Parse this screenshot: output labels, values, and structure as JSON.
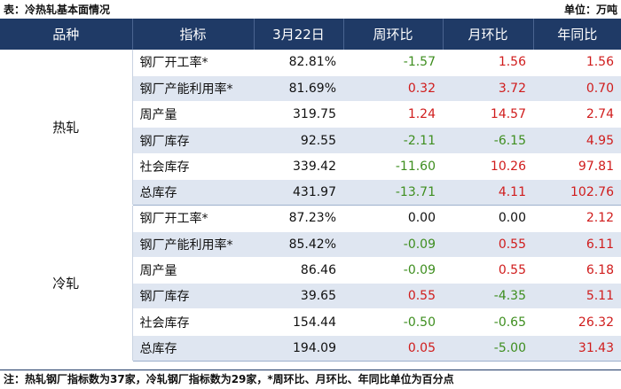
{
  "caption": {
    "title": "表：冷热轧基本面情况",
    "unit": "单位：万吨"
  },
  "headers": [
    "品种",
    "指标",
    "3月22日",
    "周环比",
    "月环比",
    "年同比"
  ],
  "groups": [
    {
      "name": "热轧",
      "rows": [
        {
          "indicator": "钢厂开工率*",
          "value": "82.81%",
          "wow": "-1.57",
          "mom": "1.56",
          "yoy": "1.56"
        },
        {
          "indicator": "钢厂产能利用率*",
          "value": "81.69%",
          "wow": "0.32",
          "mom": "3.72",
          "yoy": "0.70"
        },
        {
          "indicator": "周产量",
          "value": "319.75",
          "wow": "1.24",
          "mom": "14.57",
          "yoy": "2.74"
        },
        {
          "indicator": "钢厂库存",
          "value": "92.55",
          "wow": "-2.11",
          "mom": "-6.15",
          "yoy": "4.95"
        },
        {
          "indicator": "社会库存",
          "value": "339.42",
          "wow": "-11.60",
          "mom": "10.26",
          "yoy": "97.81"
        },
        {
          "indicator": "总库存",
          "value": "431.97",
          "wow": "-13.71",
          "mom": "4.11",
          "yoy": "102.76"
        }
      ]
    },
    {
      "name": "冷轧",
      "rows": [
        {
          "indicator": "钢厂开工率*",
          "value": "87.23%",
          "wow": "0.00",
          "mom": "0.00",
          "yoy": "2.12"
        },
        {
          "indicator": "钢厂产能利用率*",
          "value": "85.42%",
          "wow": "-0.09",
          "mom": "0.55",
          "yoy": "6.11"
        },
        {
          "indicator": "周产量",
          "value": "86.46",
          "wow": "-0.09",
          "mom": "0.55",
          "yoy": "6.18"
        },
        {
          "indicator": "钢厂库存",
          "value": "39.65",
          "wow": "0.55",
          "mom": "-4.35",
          "yoy": "5.11"
        },
        {
          "indicator": "社会库存",
          "value": "154.44",
          "wow": "-0.50",
          "mom": "-0.65",
          "yoy": "26.32"
        },
        {
          "indicator": "总库存",
          "value": "194.09",
          "wow": "0.05",
          "mom": "-5.00",
          "yoy": "31.43"
        }
      ]
    }
  ],
  "note": "注：热轧钢厂指标数为37家，冷轧钢厂指标数为29家，*周环比、月环比、年同比单位为百分点",
  "colors": {
    "header_bg": "#1f3a66",
    "alt_row": "#dfe6f1",
    "positive": "#d01c1c",
    "negative": "#3e8e1f"
  }
}
